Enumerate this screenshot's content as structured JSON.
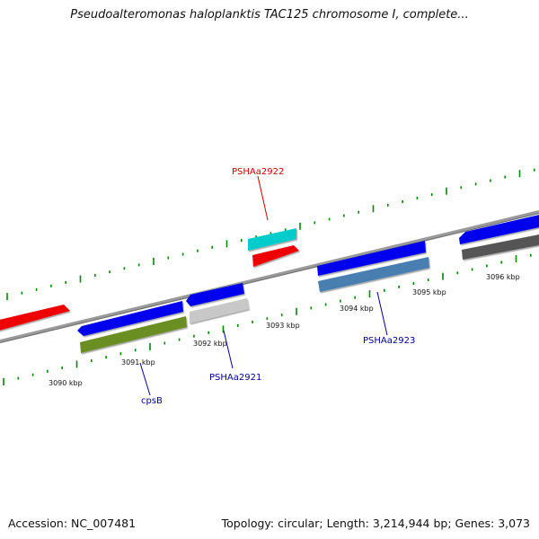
{
  "title": "Pseudoalteromonas haloplanktis TAC125 chromosome I, complete...",
  "footer": {
    "accession": "Accession: NC_007481",
    "summary": "Topology: circular; Length: 3,214,944 bp; Genes: 3,073"
  },
  "scale_labels": [
    "3090 kbp",
    "3091 kbp",
    "3092 kbp",
    "3093 kbp",
    "3094 kbp",
    "3095 kbp",
    "3096 kbp"
  ],
  "gene_labels": [
    {
      "text": "PSHAa2922",
      "color": "#cc0000"
    },
    {
      "text": "cpsB",
      "color": "#000099"
    },
    {
      "text": "PSHAa2921",
      "color": "#000099"
    },
    {
      "text": "PSHAa2923",
      "color": "#000099"
    }
  ],
  "colors": {
    "red": "#ee0000",
    "blue": "#0000ee",
    "cyan": "#00cccc",
    "green": "#6b8e23",
    "lightgray": "#c8c8c8",
    "steelblue": "#4a7eb0",
    "darkgray": "#555555",
    "backbone": "#8a8a8a",
    "tick": "#008800"
  }
}
